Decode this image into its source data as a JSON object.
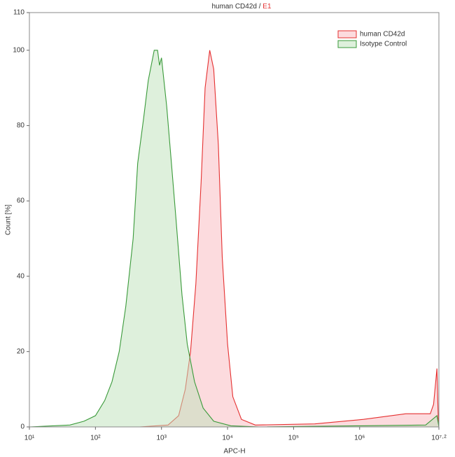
{
  "chart_data": {
    "type": "histogram-overlay",
    "title_parts": [
      {
        "text": "human CD42d /",
        "color": "#333333"
      },
      {
        "text": "E1",
        "color": "#e53030"
      }
    ],
    "x_label": "APC-H",
    "y_label": "Count [%]",
    "log_x": true,
    "xlim": [
      10,
      15848932
    ],
    "xticks": [
      {
        "value": 10,
        "label": "10¹"
      },
      {
        "value": 100,
        "label": "10²"
      },
      {
        "value": 1000,
        "label": "10³"
      },
      {
        "value": 10000,
        "label": "10⁴"
      },
      {
        "value": 100000,
        "label": "10⁵"
      },
      {
        "value": 1000000,
        "label": "10⁶"
      },
      {
        "value": 15848932,
        "label": "10⁷·²"
      }
    ],
    "ylim": [
      0,
      110
    ],
    "yticks": [
      0,
      20,
      40,
      60,
      80,
      100,
      110
    ],
    "legend": "upper right",
    "series": [
      {
        "name": "human CD42d",
        "color": "#e53030",
        "fill": "rgba(250,190,195,0.55)",
        "x": [
          468,
          1259,
          1820,
          2291,
          2754,
          3311,
          3981,
          4571,
          5370,
          6166,
          7244,
          8318,
          10000,
          12023,
          16218,
          26303,
          208930,
          1148000,
          5012000,
          11750000,
          13180000,
          14790000,
          15490000,
          15848932
        ],
        "values": [
          0,
          0.5,
          3,
          10,
          20,
          38,
          65,
          90,
          100,
          95,
          75,
          45,
          22,
          8,
          2,
          0.5,
          0.8,
          2,
          3.5,
          3.5,
          6,
          15.5,
          2,
          0
        ]
      },
      {
        "name": "Isotype Control",
        "color": "#3a9a3a",
        "fill": "rgba(190,225,185,0.5)",
        "x": [
          10,
          41,
          67,
          100,
          138,
          178,
          229,
          288,
          372,
          436,
          537,
          631,
          776,
          871,
          933,
          1000,
          1200,
          1413,
          1660,
          2042,
          2455,
          3162,
          4266,
          6166,
          11220,
          30000,
          1000000,
          10000000,
          14790000,
          15488000,
          15848932
        ],
        "values": [
          0,
          0.5,
          1.5,
          3,
          7,
          12,
          20,
          32,
          50,
          70,
          82,
          92,
          100,
          100,
          96,
          98,
          85,
          70,
          55,
          35,
          22,
          12,
          5,
          1.5,
          0.3,
          0,
          0.3,
          0.5,
          3,
          1,
          0
        ]
      }
    ]
  }
}
